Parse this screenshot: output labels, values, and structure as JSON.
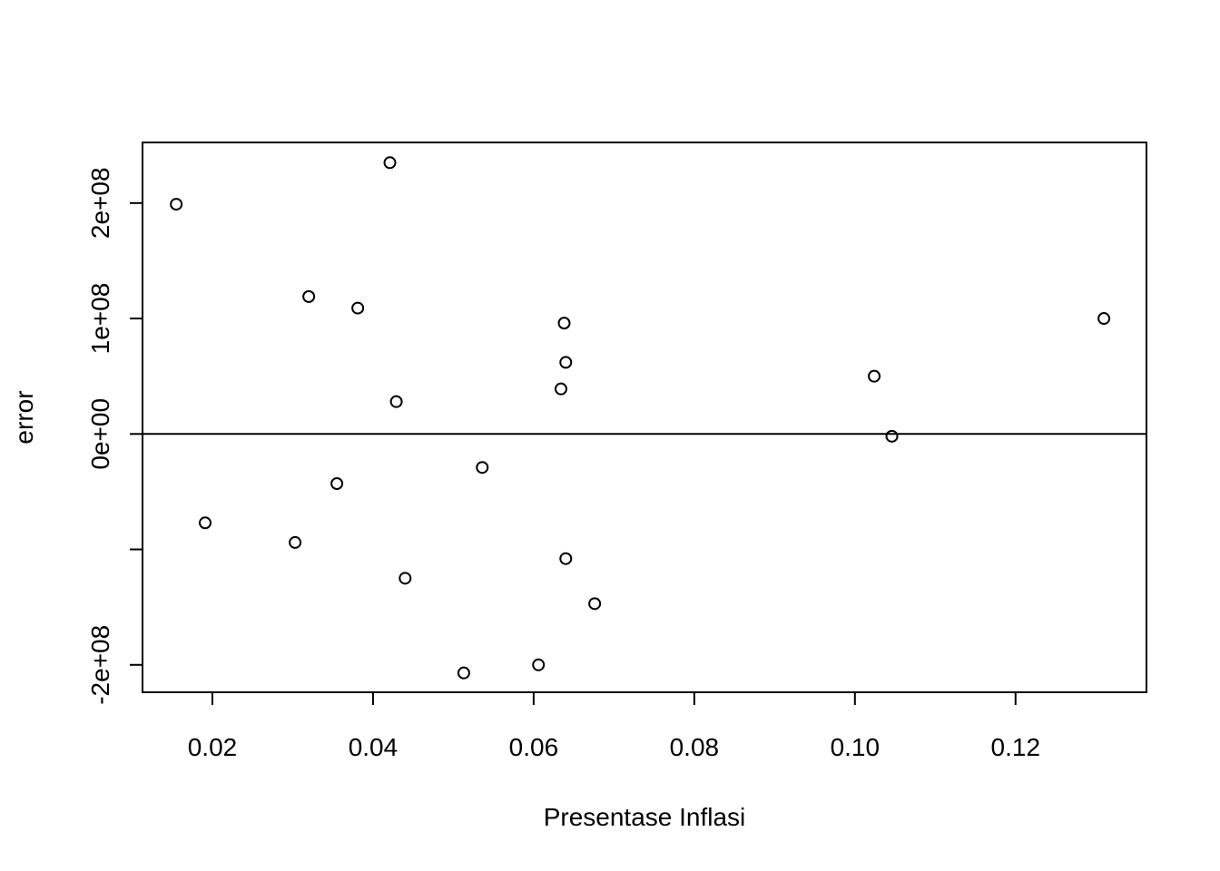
{
  "chart_data": {
    "type": "scatter",
    "xlabel": "Presentase Inflasi",
    "ylabel": "error",
    "xlim": [
      0.0113,
      0.1363
    ],
    "ylim": [
      -223750000,
      252500000
    ],
    "x_ticks": [
      {
        "value": 0.02,
        "label": "0.02"
      },
      {
        "value": 0.04,
        "label": "0.04"
      },
      {
        "value": 0.06,
        "label": "0.06"
      },
      {
        "value": 0.08,
        "label": "0.08"
      },
      {
        "value": 0.1,
        "label": "0.10"
      },
      {
        "value": 0.12,
        "label": "0.12"
      }
    ],
    "y_ticks": [
      {
        "value": -200000000,
        "label": "-2e+08"
      },
      {
        "value": -100000000,
        "label": ""
      },
      {
        "value": 0,
        "label": "0e+00"
      },
      {
        "value": 100000000,
        "label": "1e+08"
      },
      {
        "value": 200000000,
        "label": "2e+08"
      }
    ],
    "reference_line_y": 0,
    "grid": false,
    "legend": "none",
    "points": [
      {
        "x": 0.0155,
        "y": 199000000
      },
      {
        "x": 0.0421,
        "y": 235000000
      },
      {
        "x": 0.032,
        "y": 119000000
      },
      {
        "x": 0.0381,
        "y": 109000000
      },
      {
        "x": 0.0638,
        "y": 96000000
      },
      {
        "x": 0.131,
        "y": 100000000
      },
      {
        "x": 0.064,
        "y": 62000000
      },
      {
        "x": 0.1024,
        "y": 50000000
      },
      {
        "x": 0.0634,
        "y": 39000000
      },
      {
        "x": 0.0429,
        "y": 28000000
      },
      {
        "x": 0.1046,
        "y": -2000000
      },
      {
        "x": 0.0536,
        "y": -29000000
      },
      {
        "x": 0.0355,
        "y": -43000000
      },
      {
        "x": 0.0191,
        "y": -77000000
      },
      {
        "x": 0.0303,
        "y": -94000000
      },
      {
        "x": 0.064,
        "y": -108000000
      },
      {
        "x": 0.044,
        "y": -125000000
      },
      {
        "x": 0.0676,
        "y": -147000000
      },
      {
        "x": 0.0606,
        "y": -200000000
      },
      {
        "x": 0.0513,
        "y": -207000000
      }
    ]
  }
}
